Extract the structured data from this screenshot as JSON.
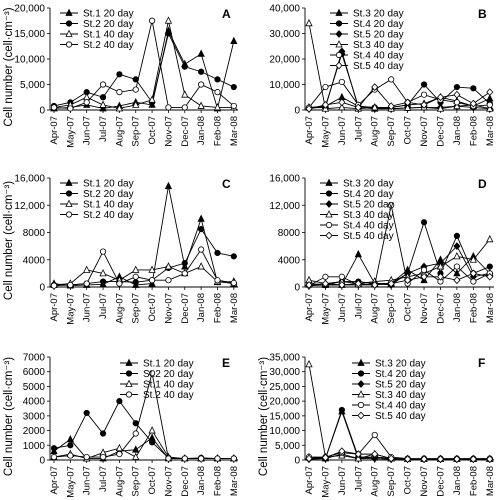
{
  "figure": {
    "panels": [
      {
        "id": "A",
        "panel_label": "A",
        "ylabel": "Cell number (cell·cm⁻³)",
        "yticks": [
          "0",
          "5,000",
          "10,000",
          "15,000",
          "20,000"
        ],
        "ylim": [
          0,
          20000
        ],
        "legend_position": "top-left",
        "show_xlabels": true
      },
      {
        "id": "B",
        "panel_label": "B",
        "ylabel": "",
        "yticks": [
          "0",
          "10,000",
          "20,000",
          "30,000",
          "40,000"
        ],
        "ylim": [
          0,
          40000
        ],
        "legend_position": "top-right",
        "show_xlabels": true
      },
      {
        "id": "C",
        "panel_label": "C",
        "ylabel": "Cell number (cell·cm⁻³)",
        "yticks": [
          "0",
          "4000",
          "8000",
          "12,000",
          "16,000"
        ],
        "ylim": [
          0,
          16000
        ],
        "legend_position": "top-left",
        "show_xlabels": true
      },
      {
        "id": "D",
        "panel_label": "D",
        "ylabel": "",
        "yticks": [
          "0",
          "4000",
          "8000",
          "12,000",
          "16,000"
        ],
        "ylim": [
          0,
          16000
        ],
        "legend_position": "top",
        "show_xlabels": true
      },
      {
        "id": "E",
        "panel_label": "E",
        "ylabel": "Cell number (cell·cm⁻³)",
        "yticks": [
          "0",
          "1000",
          "2000",
          "3000",
          "4000",
          "5000",
          "6000",
          "7000"
        ],
        "ylim": [
          0,
          7000
        ],
        "legend_position": "top-right",
        "show_xlabels": true
      },
      {
        "id": "F",
        "panel_label": "F",
        "ylabel": "Cell number (cell·cm⁻³)",
        "yticks": [
          "0",
          "5,000",
          "10,000",
          "15,000",
          "20,000",
          "25,000",
          "30,000",
          "35,000"
        ],
        "ylim": [
          0,
          35000
        ],
        "legend_position": "top-right",
        "show_xlabels": true
      }
    ]
  },
  "chart_data": [
    {
      "type": "line",
      "panel": "A",
      "categories": [
        "Apr-07",
        "May-07",
        "Jun-07",
        "Jul-07",
        "Aug-07",
        "Sep-07",
        "Oct-07",
        "Nov-07",
        "Dec-07",
        "Jan-08",
        "Feb-08",
        "Mar-08"
      ],
      "ylim": [
        0,
        20000
      ],
      "series": [
        {
          "name": "St.1 20 day",
          "marker": "filled-triangle",
          "values": [
            300,
            500,
            1000,
            300,
            800,
            1500,
            1000,
            15500,
            9000,
            11000,
            300,
            13500
          ]
        },
        {
          "name": "St.2 20 day",
          "marker": "filled-circle",
          "values": [
            800,
            1500,
            3500,
            2500,
            7000,
            6000,
            1500,
            15000,
            8500,
            7500,
            6000,
            4500
          ]
        },
        {
          "name": "St.1 40 day",
          "marker": "open-triangle",
          "values": [
            500,
            1000,
            2500,
            1000,
            300,
            1000,
            2000,
            17500,
            3000,
            800,
            500,
            500
          ]
        },
        {
          "name": "St.2 40 day",
          "marker": "open-circle",
          "values": [
            500,
            300,
            1500,
            5000,
            3500,
            4000,
            17500,
            500,
            500,
            5000,
            3500,
            800
          ]
        }
      ]
    },
    {
      "type": "line",
      "panel": "B",
      "categories": [
        "Apr-07",
        "May-07",
        "Jun-07",
        "Jul-07",
        "Aug-07",
        "Sep-07",
        "Oct-07",
        "Nov-07",
        "Dec-07",
        "Jan-08",
        "Feb-08",
        "Mar-08"
      ],
      "ylim": [
        0,
        40000
      ],
      "series": [
        {
          "name": "St.3 20 day",
          "marker": "filled-triangle",
          "values": [
            1000,
            1500,
            5000,
            1500,
            500,
            1000,
            2000,
            2500,
            5000,
            3500,
            1500,
            4500
          ]
        },
        {
          "name": "St.4 20 day",
          "marker": "filled-circle",
          "values": [
            500,
            1500,
            22000,
            1500,
            1000,
            1000,
            2000,
            10000,
            3000,
            9000,
            8500,
            2500
          ]
        },
        {
          "name": "St.5 20 day",
          "marker": "filled-diamond",
          "values": [
            800,
            1000,
            23000,
            1000,
            500,
            500,
            800,
            1000,
            1000,
            1500,
            1000,
            500
          ]
        },
        {
          "name": "St.3 40 day",
          "marker": "open-triangle",
          "values": [
            34000,
            500,
            1000,
            500,
            1000,
            500,
            800,
            1000,
            500,
            1500,
            2000,
            500
          ]
        },
        {
          "name": "St.4 40 day",
          "marker": "open-circle",
          "values": [
            1000,
            9000,
            11000,
            2000,
            8000,
            12000,
            3000,
            6000,
            4000,
            3000,
            1500,
            2000
          ]
        },
        {
          "name": "St.5 40 day",
          "marker": "open-diamond",
          "values": [
            500,
            2000,
            3000,
            1000,
            9000,
            1500,
            3000,
            2000,
            5000,
            6000,
            2500,
            7000
          ]
        }
      ]
    },
    {
      "type": "line",
      "panel": "C",
      "categories": [
        "Apr-07",
        "May-07",
        "Jun-07",
        "Jul-07",
        "Aug-07",
        "Sep-07",
        "Oct-07",
        "Nov-07",
        "Dec-07",
        "Jan-08",
        "Feb-08",
        "Mar-08"
      ],
      "ylim": [
        0,
        16000
      ],
      "series": [
        {
          "name": "St.1 20 day",
          "marker": "filled-triangle",
          "values": [
            500,
            200,
            300,
            400,
            1500,
            300,
            500,
            14800,
            3000,
            10000,
            700,
            800
          ]
        },
        {
          "name": "St.2 20 day",
          "marker": "filled-circle",
          "values": [
            300,
            300,
            500,
            800,
            800,
            700,
            1000,
            2800,
            3500,
            8500,
            5000,
            4500
          ]
        },
        {
          "name": "St.1 40 day",
          "marker": "open-triangle",
          "values": [
            300,
            500,
            2500,
            2000,
            1000,
            2500,
            2500,
            3000,
            2000,
            3000,
            800,
            500
          ]
        },
        {
          "name": "St.2 40 day",
          "marker": "open-circle",
          "values": [
            200,
            300,
            500,
            5200,
            500,
            1500,
            1000,
            1000,
            2000,
            5500,
            1000,
            600
          ]
        }
      ]
    },
    {
      "type": "line",
      "panel": "D",
      "categories": [
        "Apr-07",
        "May-07",
        "Jun-07",
        "Jul-07",
        "Aug-07",
        "Sep-07",
        "Oct-07",
        "Nov-07",
        "Dec-07",
        "Jan-08",
        "Feb-08",
        "Mar-08"
      ],
      "ylim": [
        0,
        16000
      ],
      "series": [
        {
          "name": "St.3 20 day",
          "marker": "filled-triangle",
          "values": [
            500,
            300,
            300,
            4800,
            500,
            500,
            2500,
            1000,
            4000,
            2000,
            4500,
            2000
          ]
        },
        {
          "name": "St.4 20 day",
          "marker": "filled-circle",
          "values": [
            300,
            300,
            800,
            800,
            500,
            500,
            2000,
            9500,
            2000,
            7500,
            2000,
            3000
          ]
        },
        {
          "name": "St.5 20 day",
          "marker": "filled-diamond",
          "values": [
            200,
            300,
            300,
            300,
            500,
            300,
            2000,
            3000,
            3500,
            6000,
            1500,
            2000
          ]
        },
        {
          "name": "St.3 40 day",
          "marker": "open-triangle",
          "values": [
            1000,
            500,
            800,
            500,
            800,
            1000,
            1500,
            2000,
            3000,
            4500,
            4000,
            7000
          ]
        },
        {
          "name": "St.4 40 day",
          "marker": "open-circle",
          "values": [
            200,
            1500,
            1500,
            300,
            300,
            12000,
            500,
            2500,
            800,
            3000,
            800,
            2000
          ]
        },
        {
          "name": "St.5 40 day",
          "marker": "open-diamond",
          "values": [
            300,
            500,
            300,
            500,
            300,
            500,
            1000,
            1500,
            1500,
            1000,
            2000,
            1500
          ]
        }
      ]
    },
    {
      "type": "line",
      "panel": "E",
      "categories": [
        "Apr-07",
        "May-07",
        "Jun-07",
        "Jul-07",
        "Aug-07",
        "Sep-07",
        "Oct-07",
        "Nov-07",
        "Dec-07",
        "Jan-08",
        "Feb-08",
        "Mar-08"
      ],
      "ylim": [
        0,
        7000
      ],
      "series": [
        {
          "name": "St.1 20 day",
          "marker": "filled-triangle",
          "values": [
            600,
            1400,
            100,
            100,
            600,
            700,
            1500,
            100,
            100,
            100,
            100,
            100
          ]
        },
        {
          "name": "St.2 20 day",
          "marker": "filled-circle",
          "values": [
            800,
            1000,
            3200,
            1800,
            4000,
            2500,
            1200,
            150,
            100,
            150,
            100,
            100
          ]
        },
        {
          "name": "St.1 40 day",
          "marker": "open-triangle",
          "values": [
            200,
            400,
            100,
            500,
            800,
            200,
            2000,
            200,
            100,
            100,
            100,
            100
          ]
        },
        {
          "name": "St.2 40 day",
          "marker": "open-circle",
          "values": [
            200,
            300,
            200,
            200,
            400,
            1800,
            5900,
            100,
            100,
            100,
            100,
            100
          ]
        }
      ]
    },
    {
      "type": "line",
      "panel": "F",
      "categories": [
        "Apr-07",
        "May-07",
        "Jun-07",
        "Jul-07",
        "Aug-07",
        "Sep-07",
        "Oct-07",
        "Nov-07",
        "Dec-07",
        "Jan-08",
        "Feb-08",
        "Mar-08"
      ],
      "ylim": [
        0,
        35000
      ],
      "series": [
        {
          "name": "St.3 20 day",
          "marker": "filled-triangle",
          "values": [
            1000,
            500,
            16500,
            500,
            1000,
            500,
            300,
            300,
            300,
            300,
            300,
            300
          ]
        },
        {
          "name": "St.4 20 day",
          "marker": "filled-circle",
          "values": [
            500,
            500,
            17000,
            1000,
            1000,
            500,
            300,
            300,
            300,
            300,
            300,
            300
          ]
        },
        {
          "name": "St.5 20 day",
          "marker": "filled-diamond",
          "values": [
            300,
            500,
            2000,
            500,
            500,
            300,
            300,
            300,
            300,
            300,
            300,
            300
          ]
        },
        {
          "name": "St.3 40 day",
          "marker": "open-triangle",
          "values": [
            32500,
            1000,
            1500,
            500,
            2000,
            500,
            300,
            300,
            300,
            300,
            300,
            300
          ]
        },
        {
          "name": "St.4 40 day",
          "marker": "open-circle",
          "values": [
            1000,
            1000,
            2500,
            2000,
            8500,
            1000,
            500,
            500,
            500,
            500,
            500,
            500
          ]
        },
        {
          "name": "St.5 40 day",
          "marker": "open-diamond",
          "values": [
            500,
            800,
            3000,
            2000,
            2000,
            500,
            300,
            300,
            300,
            300,
            300,
            300
          ]
        }
      ]
    }
  ]
}
